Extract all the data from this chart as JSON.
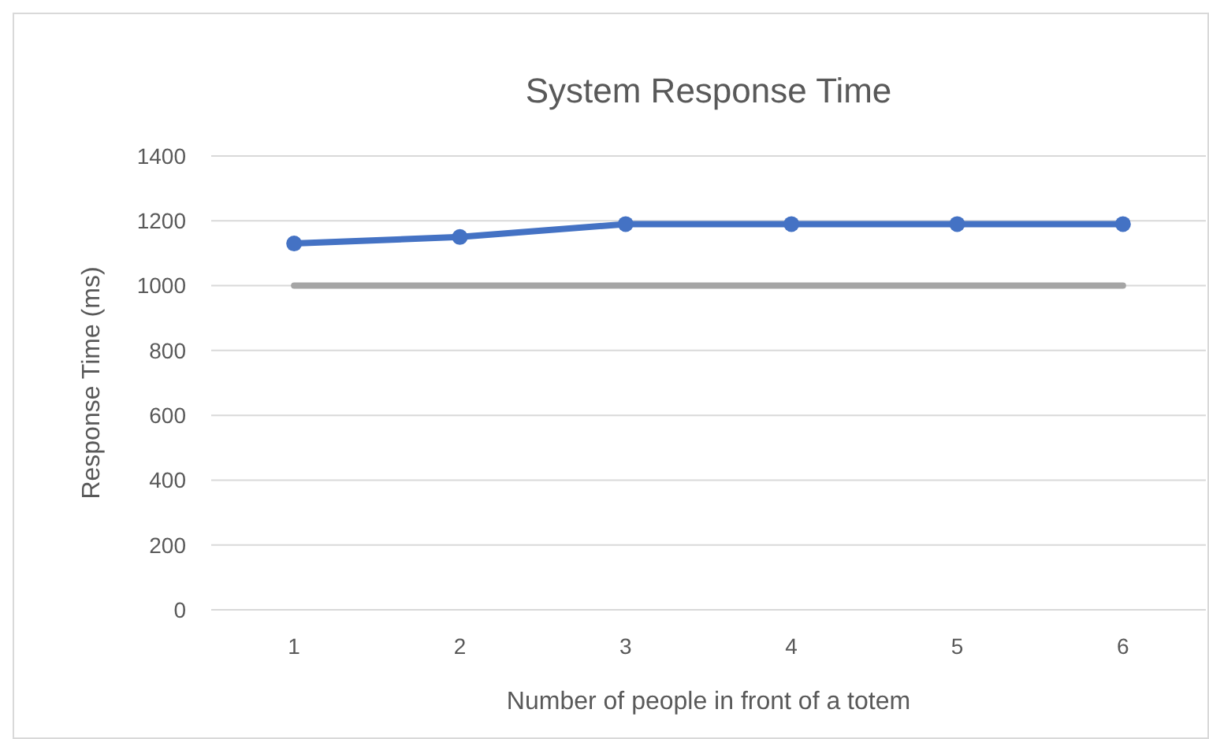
{
  "chart_data": {
    "type": "line",
    "title": "System Response Time",
    "xlabel": "Number of people in front of a totem",
    "ylabel": "Response Time (ms)",
    "categories": [
      "1",
      "2",
      "3",
      "4",
      "5",
      "6"
    ],
    "series": [
      {
        "color": "#4472c4",
        "marker": "circle",
        "values": [
          1130,
          1150,
          1190,
          1190,
          1190,
          1190
        ]
      },
      {
        "color": "#a5a5a5",
        "marker": "none",
        "values": [
          1000,
          1000,
          1000,
          1000,
          1000,
          1000
        ]
      }
    ],
    "ylim": [
      0,
      1400
    ],
    "yticks": [
      0,
      200,
      400,
      600,
      800,
      1000,
      1200,
      1400
    ],
    "grid": "y"
  }
}
